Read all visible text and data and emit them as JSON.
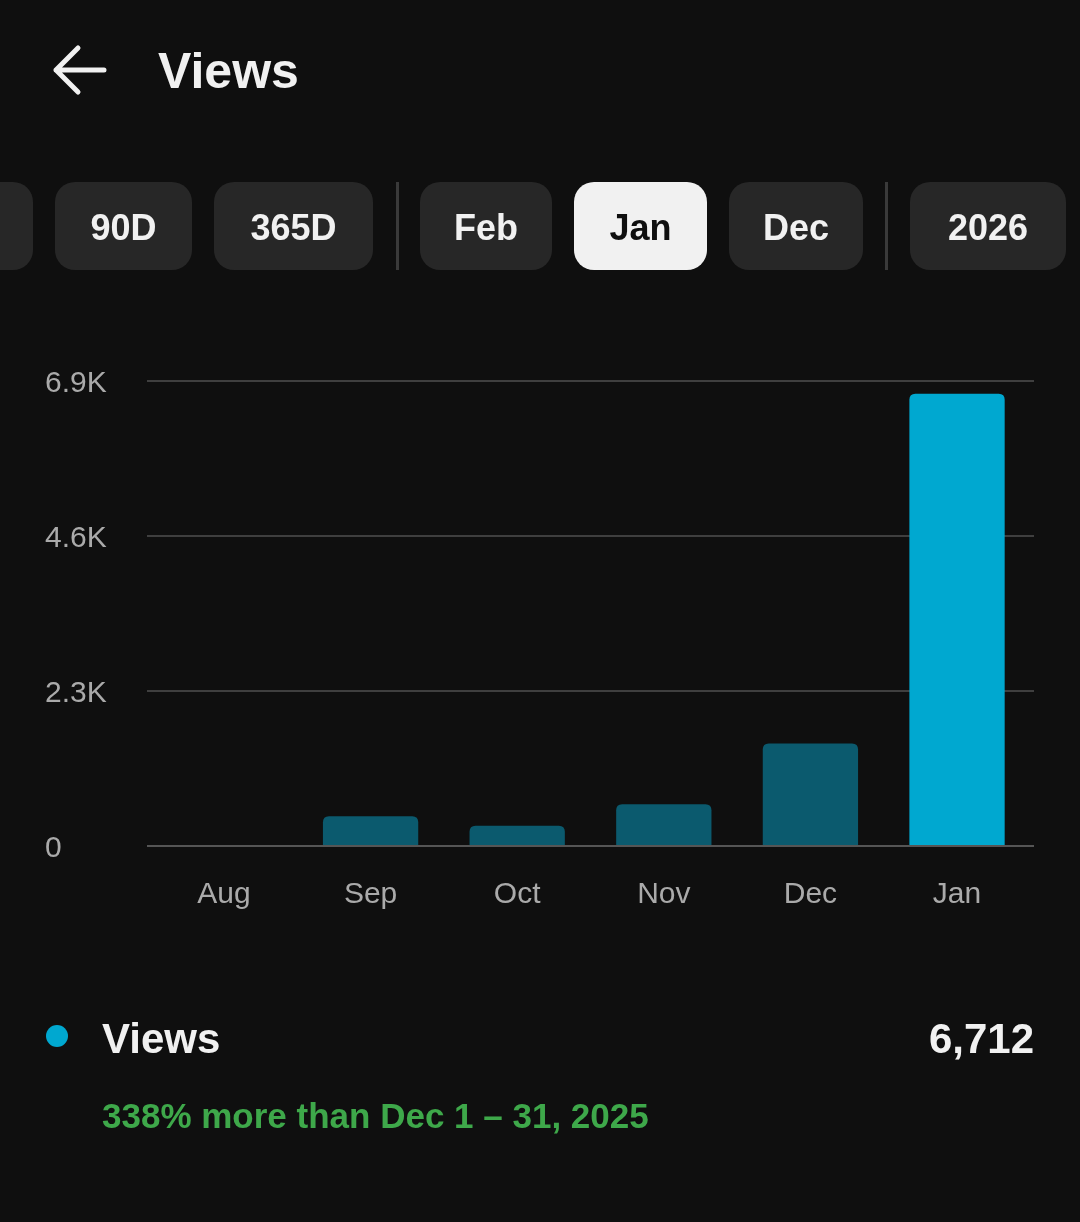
{
  "chart_data": {
    "type": "bar",
    "title": "Views",
    "categories": [
      "Aug",
      "Sep",
      "Oct",
      "Nov",
      "Dec",
      "Jan"
    ],
    "series": [
      {
        "name": "Views",
        "color": "#00a8d0",
        "colors": [
          "#0b5a6e",
          "#0b5a6e",
          "#0b5a6e",
          "#0b5a6e",
          "#0b5a6e",
          "#00a8d0"
        ],
        "values": [
          0,
          440,
          300,
          620,
          1520,
          6712
        ]
      }
    ],
    "ylim": [
      0,
      6900
    ],
    "yticks": [
      0,
      {
        "value": 2300,
        "label": "2.3K"
      },
      {
        "value": 4600,
        "label": "4.6K"
      },
      {
        "value": 6900,
        "label": "6.9K"
      }
    ],
    "grid": "y",
    "legend": "bottom",
    "annotations": [
      "90D",
      "365D",
      "Feb",
      "Jan",
      "Dec",
      "2026",
      "6,712",
      "338% more than Dec 1 – 31, 2025"
    ]
  }
}
